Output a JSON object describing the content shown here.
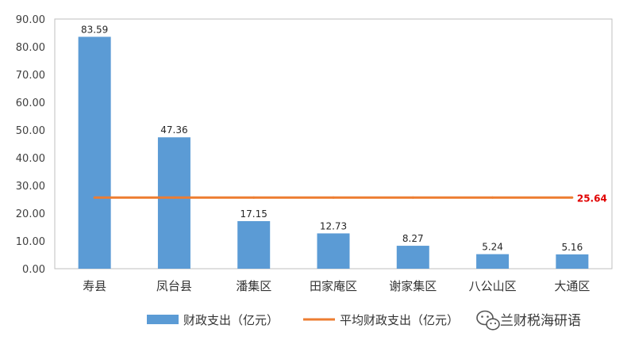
{
  "chart_data": {
    "type": "bar",
    "categories": [
      "寿县",
      "凤台县",
      "潘集区",
      "田家庵区",
      "谢家集区",
      "八公山区",
      "大通区"
    ],
    "series": [
      {
        "name": "财政支出（亿元）",
        "type": "bar",
        "values": [
          83.59,
          47.36,
          17.15,
          12.73,
          8.27,
          5.24,
          5.16
        ],
        "color": "#5B9BD5"
      },
      {
        "name": "平均财政支出（亿元）",
        "type": "line",
        "values": [
          25.64,
          25.64,
          25.64,
          25.64,
          25.64,
          25.64,
          25.64
        ],
        "color": "#ED7D31"
      }
    ],
    "data_labels": [
      "83.59",
      "47.36",
      "17.15",
      "12.73",
      "8.27",
      "5.24",
      "5.16"
    ],
    "average_label": "25.64",
    "average_label_color": "#E00000",
    "ylim": [
      0,
      90
    ],
    "yticks": [
      "0.00",
      "10.00",
      "20.00",
      "30.00",
      "40.00",
      "50.00",
      "60.00",
      "70.00",
      "80.00",
      "90.00"
    ],
    "grid": false,
    "legend_position": "bottom"
  },
  "watermark": {
    "text": "兰财税海研语",
    "icon": "wechat-icon"
  }
}
